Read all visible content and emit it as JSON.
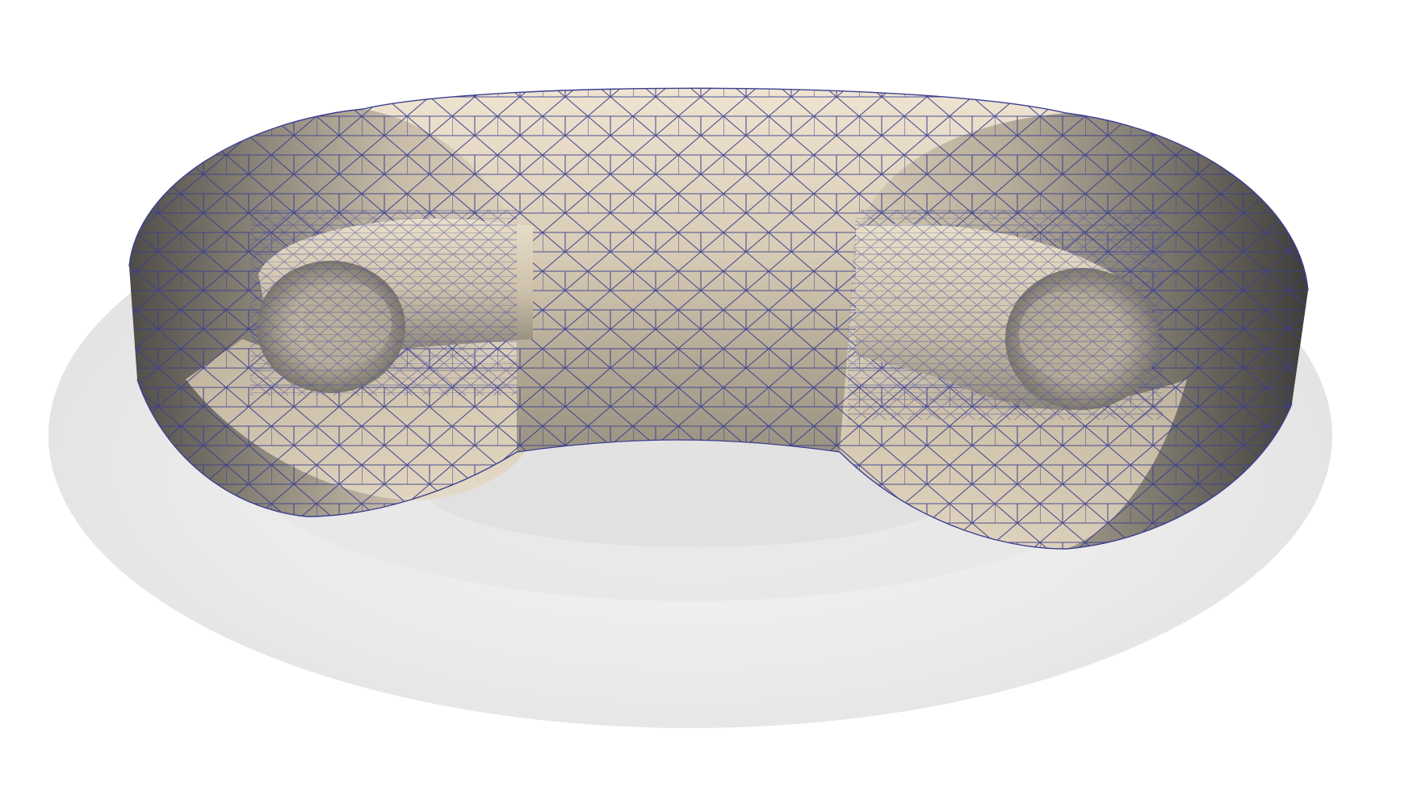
{
  "scene": {
    "background": "#ffffff",
    "outer_shell_color": "#e9e9e9",
    "surface_light": "#ece2d0",
    "surface_mid": "#c9bda9",
    "surface_dark": "#5d5a55",
    "inner_torus_color": "#e3d6c0",
    "mesh_edge_color": "#3b3f8f",
    "objects": [
      "outer-transparent-torus",
      "cut-mesh-torus-surface",
      "inner-left-tube",
      "inner-right-tube"
    ]
  }
}
